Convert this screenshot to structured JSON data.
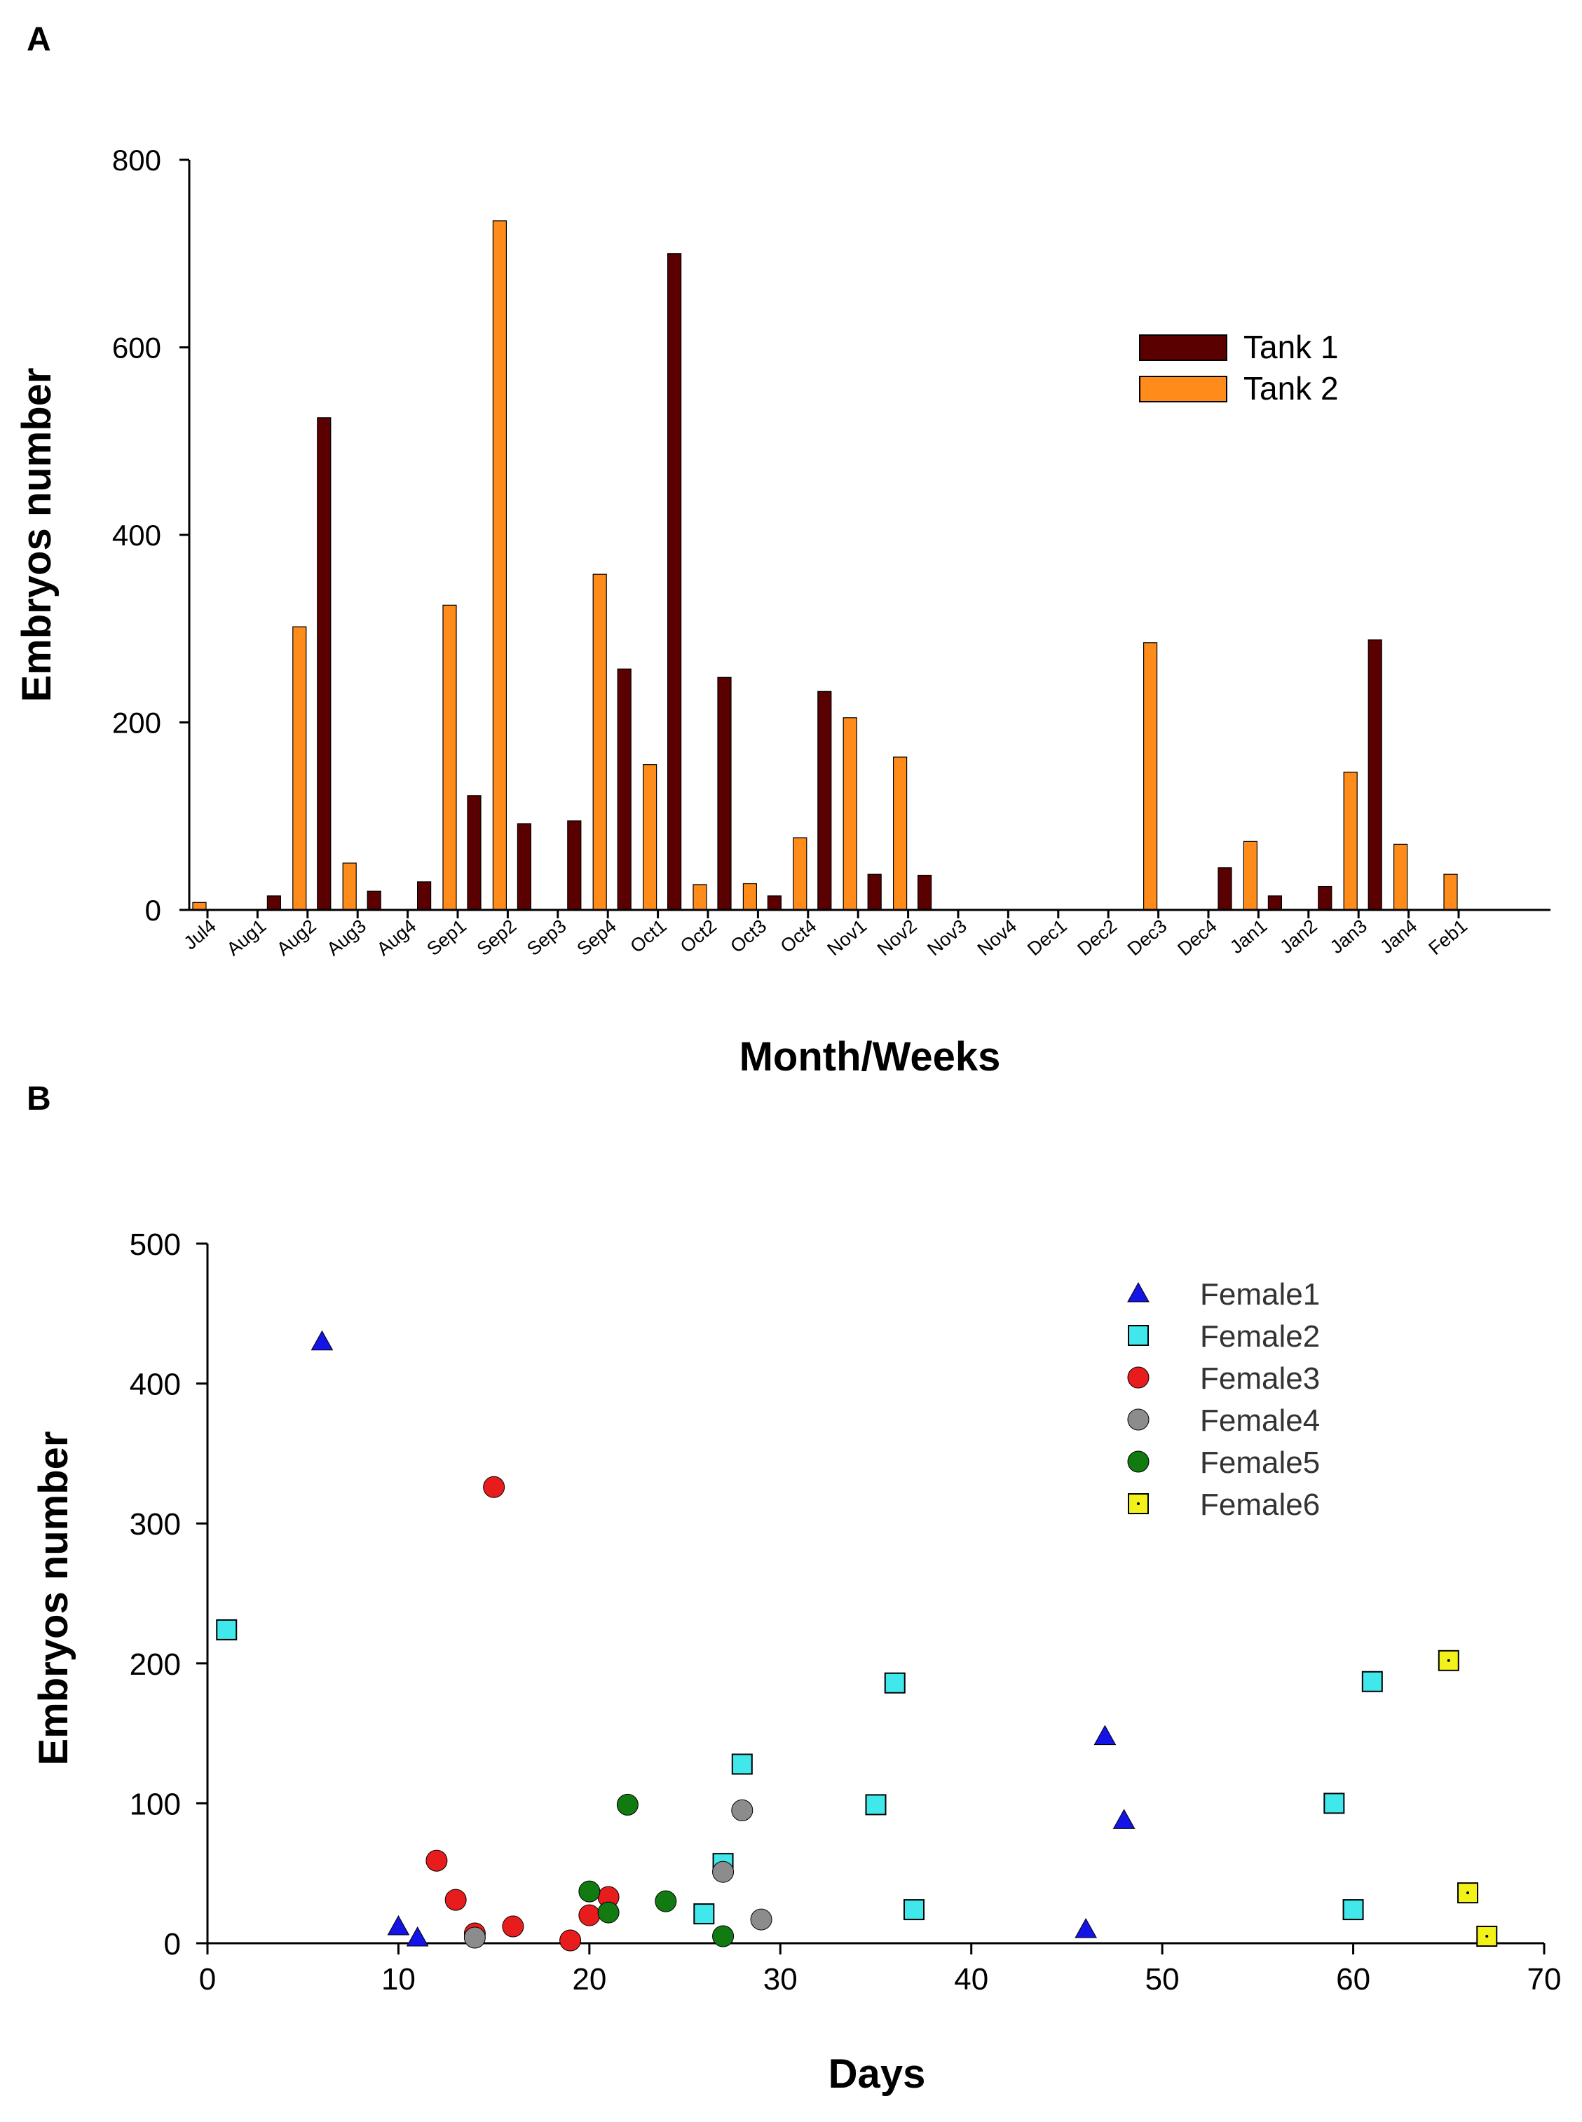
{
  "panel_a_label": "A",
  "panel_b_label": "B",
  "colors": {
    "tank1": "#5a0000",
    "tank2": "#ff8c1a",
    "female1": "#1414e6",
    "female2": "#40e8ec",
    "female3": "#e81c1c",
    "female4": "#8c8c8c",
    "female5": "#117a11",
    "female6": "#f2f21a"
  },
  "chart_data": [
    {
      "type": "bar",
      "title": "",
      "xlabel": "Month/Weeks",
      "ylabel": "Embryos number",
      "ylim": [
        0,
        800
      ],
      "yticks": [
        "0",
        "200",
        "400",
        "600",
        "800"
      ],
      "legend_position": "top-right",
      "categories": [
        "Jul4",
        "Aug1",
        "Aug2",
        "Aug3",
        "Aug4",
        "Sep1",
        "Sep2",
        "Sep3",
        "Sep4",
        "Oct1",
        "Oct2",
        "Oct3",
        "Oct4",
        "Nov1",
        "Nov2",
        "Nov3",
        "Nov4",
        "Dec1",
        "Dec2",
        "Dec3",
        "Dec4",
        "Jan1",
        "Jan2",
        "Jan3",
        "Jan4",
        "Feb1"
      ],
      "series": [
        {
          "name": "Tank 1",
          "values": [
            0,
            15,
            525,
            20,
            30,
            122,
            92,
            95,
            257,
            700,
            248,
            15,
            233,
            38,
            37,
            0,
            0,
            0,
            0,
            0,
            45,
            15,
            25,
            288,
            0,
            0
          ]
        },
        {
          "name": "Tank 2",
          "values": [
            8,
            0,
            302,
            50,
            0,
            325,
            735,
            0,
            358,
            155,
            27,
            28,
            77,
            205,
            163,
            0,
            0,
            0,
            0,
            285,
            0,
            73,
            0,
            147,
            70,
            38
          ]
        }
      ]
    },
    {
      "type": "scatter",
      "title": "",
      "xlabel": "Days",
      "ylabel": "Embryos number",
      "xlim": [
        0,
        70
      ],
      "ylim": [
        0,
        500
      ],
      "xticks": [
        "0",
        "10",
        "20",
        "30",
        "40",
        "50",
        "60",
        "70"
      ],
      "yticks": [
        "0",
        "100",
        "200",
        "300",
        "400",
        "500"
      ],
      "legend_position": "top-right",
      "series": [
        {
          "name": "Female1",
          "marker": "triangle",
          "x": [
            6,
            10,
            11,
            46,
            47,
            48
          ],
          "y": [
            430,
            12,
            4,
            10,
            148,
            88
          ]
        },
        {
          "name": "Female2",
          "marker": "square",
          "x": [
            1,
            26,
            27,
            28,
            35,
            36,
            37,
            59,
            60,
            61
          ],
          "y": [
            224,
            21,
            57,
            128,
            99,
            186,
            24,
            100,
            24,
            187
          ]
        },
        {
          "name": "Female3",
          "marker": "circle",
          "x": [
            12,
            13,
            14,
            15,
            16,
            19,
            20,
            21
          ],
          "y": [
            59,
            31,
            7,
            326,
            12,
            2,
            20,
            33
          ]
        },
        {
          "name": "Female4",
          "marker": "circle",
          "x": [
            14,
            27,
            28,
            29
          ],
          "y": [
            4,
            51,
            95,
            17
          ]
        },
        {
          "name": "Female5",
          "marker": "circle",
          "x": [
            20,
            21,
            22,
            24,
            27
          ],
          "y": [
            37,
            22,
            99,
            30,
            5
          ]
        },
        {
          "name": "Female6",
          "marker": "square-dot",
          "x": [
            65,
            66,
            67
          ],
          "y": [
            202,
            36,
            5
          ]
        }
      ]
    }
  ]
}
